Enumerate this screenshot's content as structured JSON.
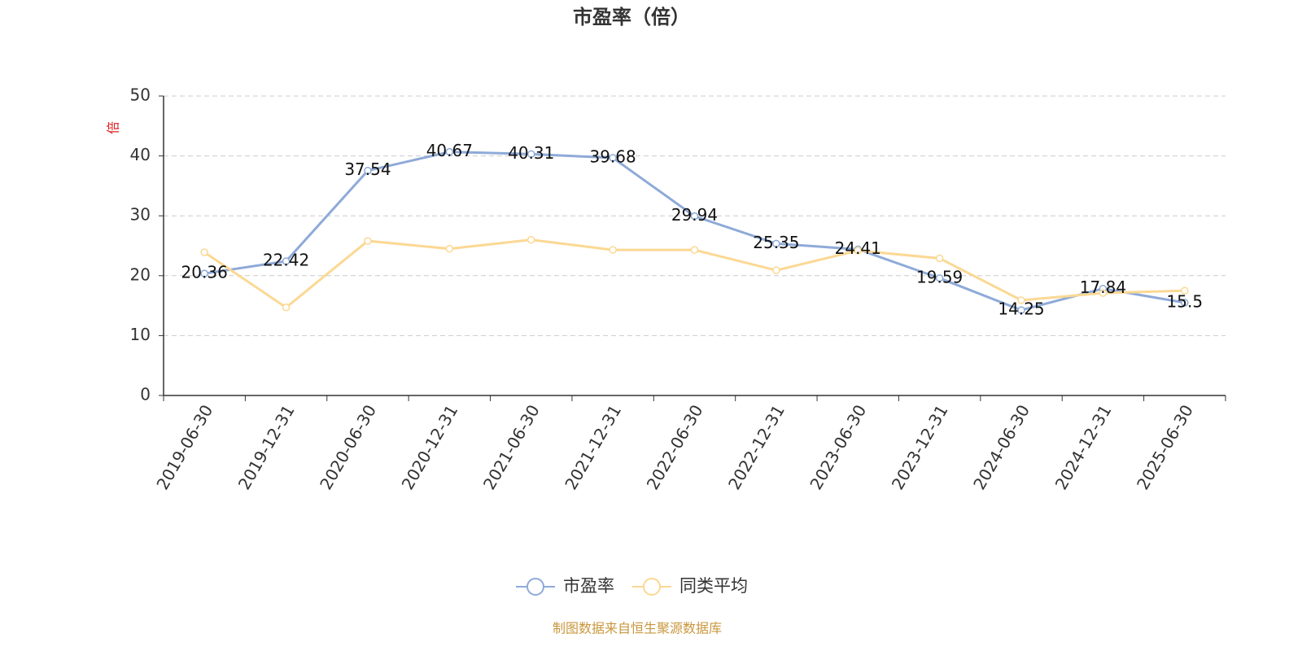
{
  "chart_data": {
    "type": "line",
    "title": "市盈率（倍）",
    "y_label": "倍",
    "source": "制图数据来自恒生聚源数据库",
    "categories": [
      "2019-06-30",
      "2019-12-31",
      "2020-06-30",
      "2020-12-31",
      "2021-06-30",
      "2021-12-31",
      "2022-06-30",
      "2022-12-31",
      "2023-06-30",
      "2023-12-31",
      "2024-06-30",
      "2024-12-31",
      "2025-06-30"
    ],
    "series": [
      {
        "name": "市盈率",
        "color": "#8eaad8",
        "data_labels": true,
        "values": [
          20.36,
          22.42,
          37.54,
          40.67,
          40.31,
          39.68,
          29.94,
          25.35,
          24.41,
          19.59,
          14.25,
          17.84,
          15.5
        ]
      },
      {
        "name": "同类平均",
        "color": "#fbd893",
        "data_labels": false,
        "values": [
          23.9,
          14.7,
          25.8,
          24.5,
          26.0,
          24.3,
          24.3,
          20.9,
          24.2,
          22.9,
          15.9,
          17.1,
          17.5
        ]
      }
    ],
    "ylim": [
      0,
      50
    ],
    "yticks": [
      0,
      10,
      20,
      30,
      40,
      50
    ],
    "grid": true
  }
}
